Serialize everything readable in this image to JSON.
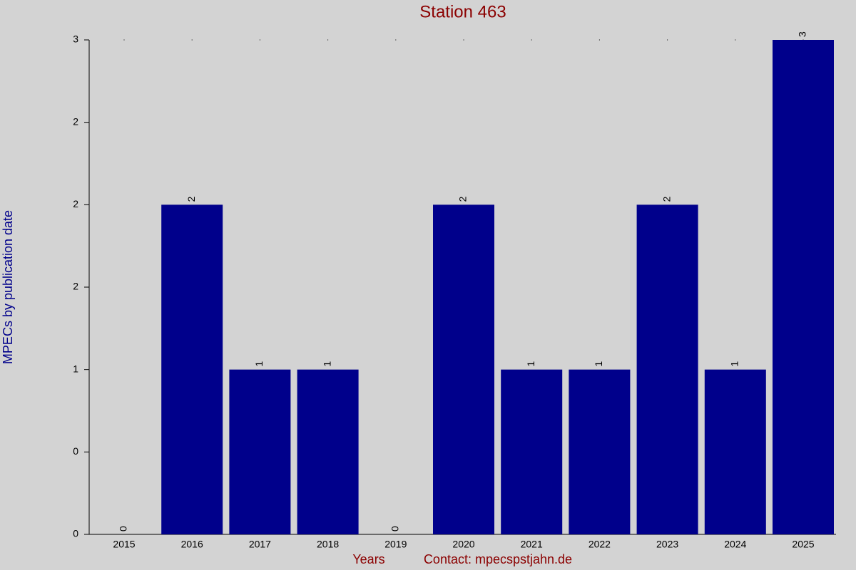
{
  "chart_data": {
    "type": "bar",
    "title": "Station 463",
    "x_label": "Years",
    "contact": "Contact: mpecspstjahn.de",
    "y_label": "MPECs by publication date",
    "categories": [
      "2015",
      "2016",
      "2017",
      "2018",
      "2019",
      "2020",
      "2021",
      "2022",
      "2023",
      "2024",
      "2025"
    ],
    "values": [
      0,
      2,
      1,
      1,
      0,
      2,
      1,
      1,
      2,
      1,
      3
    ],
    "color": "#00008b",
    "ylim": [
      0,
      3
    ],
    "yticks": [
      0,
      {
        "value": 0.5,
        "label": "0"
      },
      1,
      {
        "value": 1.5,
        "label": "2"
      },
      2,
      {
        "value": 2.5,
        "label": "2"
      },
      3
    ]
  }
}
